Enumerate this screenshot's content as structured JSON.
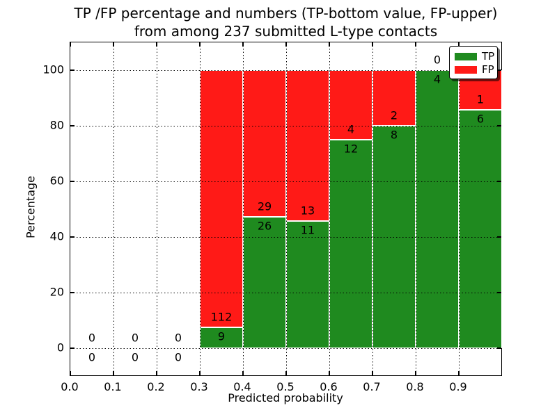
{
  "chart_data": {
    "type": "bar",
    "stacked": true,
    "normalized": "percentage",
    "title_line1": "TP /FP percentage and numbers (TP-bottom value, FP-upper)",
    "title_line2": "from among 237 submitted L-type contacts",
    "xlabel": "Predicted probability",
    "ylabel": "Percentage",
    "xlim": [
      0.0,
      1.0
    ],
    "ylim": [
      -10,
      110
    ],
    "grid": "dotted, drawn above bars",
    "total_contacts": 237,
    "bin_edges": [
      0.0,
      0.1,
      0.2,
      0.3,
      0.4,
      0.5,
      0.6,
      0.7,
      0.8,
      0.9,
      1.0
    ],
    "x_ticks": [
      {
        "value": 0.0,
        "label": "0.0"
      },
      {
        "value": 0.1,
        "label": "0.1"
      },
      {
        "value": 0.2,
        "label": "0.2"
      },
      {
        "value": 0.3,
        "label": "0.3"
      },
      {
        "value": 0.4,
        "label": "0.4"
      },
      {
        "value": 0.5,
        "label": "0.5"
      },
      {
        "value": 0.6,
        "label": "0.6"
      },
      {
        "value": 0.7,
        "label": "0.7"
      },
      {
        "value": 0.8,
        "label": "0.8"
      },
      {
        "value": 0.9,
        "label": "0.9"
      }
    ],
    "y_ticks": [
      {
        "value": 0,
        "label": "0"
      },
      {
        "value": 20,
        "label": "20"
      },
      {
        "value": 40,
        "label": "40"
      },
      {
        "value": 60,
        "label": "60"
      },
      {
        "value": 80,
        "label": "80"
      },
      {
        "value": 100,
        "label": "100"
      }
    ],
    "series": [
      {
        "name": "TP",
        "color": "#1f8a1f",
        "counts": [
          0,
          0,
          0,
          9,
          26,
          11,
          12,
          8,
          4,
          6
        ],
        "percent": [
          0,
          0,
          0,
          7.44,
          47.27,
          45.83,
          75.0,
          80.0,
          100.0,
          85.71
        ]
      },
      {
        "name": "FP",
        "color": "#ff1a17",
        "counts": [
          0,
          0,
          0,
          112,
          29,
          13,
          4,
          2,
          0,
          1
        ],
        "percent": [
          0,
          0,
          0,
          92.56,
          52.73,
          54.17,
          25.0,
          20.0,
          0.0,
          14.29
        ]
      }
    ],
    "legend": {
      "position": "upper right",
      "entries": [
        {
          "label": "TP",
          "color": "#1f8a1f"
        },
        {
          "label": "FP",
          "color": "#ff1a17"
        }
      ]
    }
  },
  "colors": {
    "tp": "#1f8a1f",
    "fp": "#ff1a17",
    "bar_edge": "#ffffff",
    "grid": "#000000",
    "text": "#000000",
    "background": "#ffffff"
  }
}
